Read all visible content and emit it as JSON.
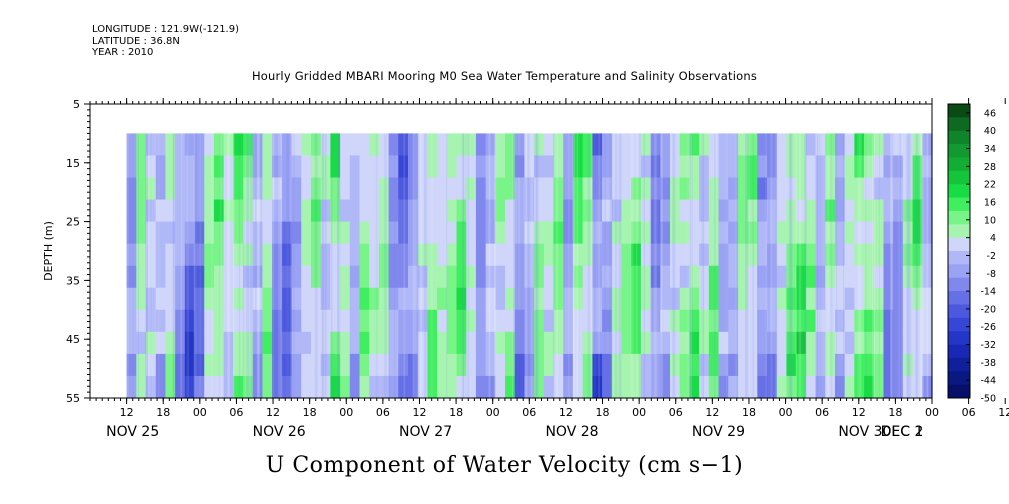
{
  "header": {
    "lines": [
      "LONGITUDE : 121.9W(-121.9)",
      "LATITUDE : 36.8N",
      "YEAR : 2010"
    ]
  },
  "colors": {
    "positive_strong": "#00c830",
    "positive_light": "#9cf0a8",
    "negative_light": "#b0b8f8",
    "negative_strong": "#2030e0",
    "background": "#ffffff",
    "axis": "#000000"
  },
  "chart_data": {
    "type": "heatmap",
    "title": "Hourly Gridded MBARI Mooring M0 Sea Water Temperature and Salinity Observations",
    "xlabel": "U Component of Water Velocity (cm s−1)",
    "ylabel": "DEPTH (m)",
    "ylim": [
      5,
      55
    ],
    "y_inverted": true,
    "y_ticks": [
      5,
      15,
      25,
      35,
      45,
      55
    ],
    "x_hour_ticks": [
      "12",
      "18",
      "00",
      "06",
      "12",
      "18",
      "00",
      "06",
      "12",
      "18",
      "00",
      "06",
      "12",
      "18",
      "00",
      "06",
      "12",
      "18",
      "00",
      "06",
      "12",
      "18",
      "00",
      "06",
      "12",
      "18",
      "00",
      "06",
      "12",
      "18",
      "00",
      "06"
    ],
    "x_day_labels": [
      "NOV 25",
      "NOV 26",
      "NOV 27",
      "NOV 28",
      "NOV 29",
      "NOV 30",
      "DEC  1",
      "DEC  2"
    ],
    "data_depth_range": [
      10,
      55
    ],
    "x_range_hours": [
      0,
      138
    ],
    "data_start_hour": 6,
    "colorbar": {
      "labels": [
        46,
        40,
        34,
        28,
        22,
        16,
        10,
        4,
        -2,
        -8,
        -14,
        -20,
        -26,
        -32,
        -38,
        -44,
        -50
      ],
      "colors": [
        "#0a4a16",
        "#0e6a20",
        "#10842a",
        "#129a30",
        "#12ae34",
        "#14c43a",
        "#18dc44",
        "#40ee60",
        "#78f488",
        "#a6f4b0",
        "#cfd6fa",
        "#b0b8f8",
        "#9aa2f4",
        "#8088ee",
        "#6670e6",
        "#4c58de",
        "#3646d6",
        "#2436c8",
        "#1828b4",
        "#10209c",
        "#0a1882",
        "#06106a"
      ],
      "range": [
        -50,
        49
      ]
    },
    "u_velocity_by_time_segment": [
      -8,
      10,
      2,
      -4,
      8,
      -8,
      -20,
      -14,
      6,
      12,
      4,
      14,
      10,
      -6,
      8,
      -12,
      -16,
      -6,
      4,
      10,
      2,
      14,
      6,
      -4,
      10,
      4,
      8,
      -8,
      -18,
      -10,
      4,
      12,
      6,
      10,
      14,
      2,
      -10,
      -4,
      8,
      12,
      -12,
      -4,
      8,
      2,
      12,
      -6,
      14,
      10,
      -16,
      -10,
      6,
      10,
      14,
      4,
      -14,
      -8,
      4,
      10,
      14,
      2,
      12,
      -4,
      -6,
      8,
      10,
      -10,
      -12,
      4,
      12,
      16,
      10,
      -4,
      8,
      -6,
      4,
      14,
      12,
      8,
      -12,
      -10,
      6,
      14,
      -6
    ]
  }
}
